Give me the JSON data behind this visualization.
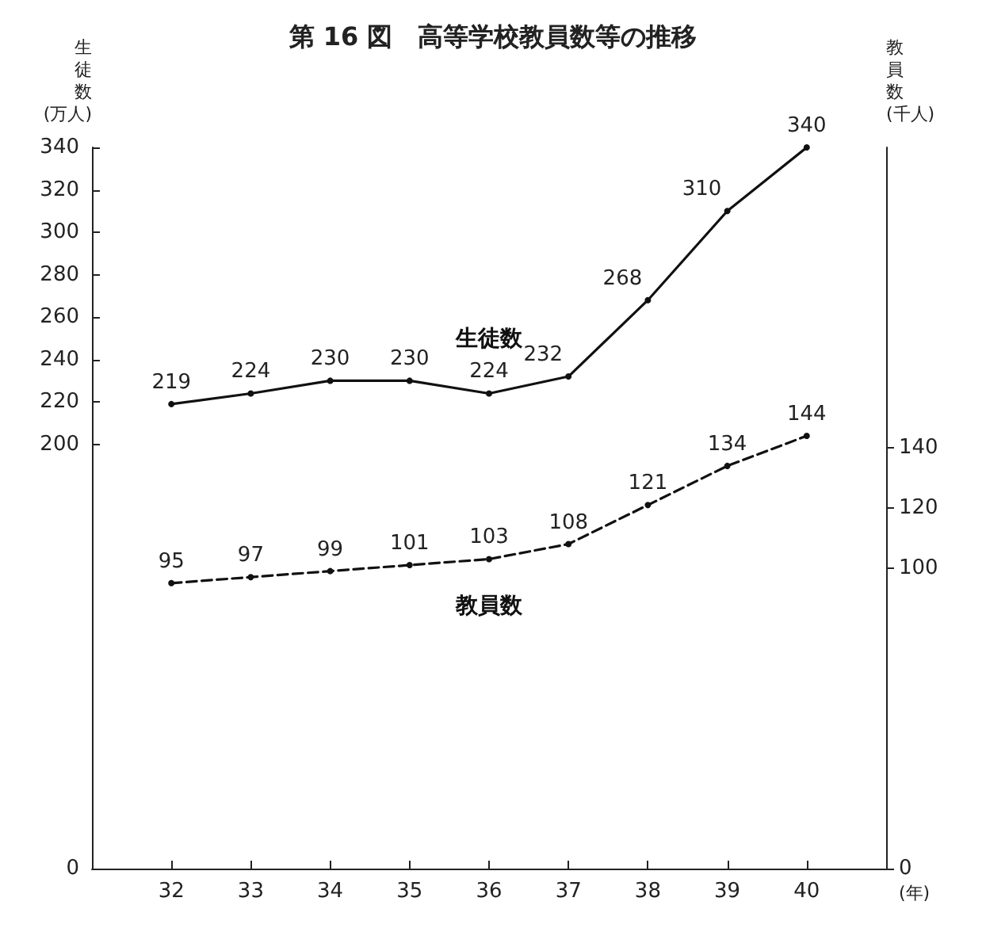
{
  "chart_data": {
    "type": "line",
    "title": "第 16 図　高等学校教員数等の推移",
    "xlabel": "(年)",
    "ylabel": "生徒数 (万人)",
    "y2label": "教員数 (千人)",
    "categories": [
      "32",
      "33",
      "34",
      "35",
      "36",
      "37",
      "38",
      "39",
      "40"
    ],
    "series": [
      {
        "name": "生徒数",
        "color": "#111111",
        "line_style": "solid",
        "values": [
          219,
          224,
          230,
          230,
          224,
          232,
          268,
          310,
          340
        ]
      },
      {
        "name": "教員数",
        "color": "#111111",
        "line_style": "dashed",
        "axis": "y2",
        "values": [
          95,
          97,
          99,
          101,
          103,
          108,
          121,
          134,
          144
        ]
      }
    ],
    "ylim": [
      0,
      340
    ],
    "yticks": [
      0,
      200,
      220,
      240,
      260,
      280,
      300,
      320,
      340
    ],
    "y2lim": [
      0,
      240
    ],
    "y2ticks": [
      0,
      100,
      120,
      140
    ],
    "data_labels": true,
    "marker": "circle",
    "grid": false,
    "legend": false
  }
}
